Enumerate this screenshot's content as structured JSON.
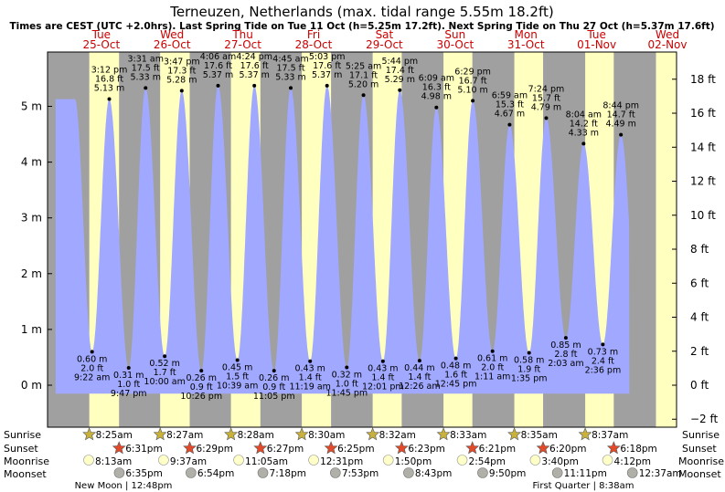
{
  "title": "Terneuzen, Netherlands (max. tidal range 5.55m 18.2ft)",
  "subtitle": "Times are CEST (UTC +2.0hrs). Last Spring Tide on Tue 11 Oct (h=5.25m 17.2ft). Next Spring Tide on Thu 27 Oct (h=5.37m 17.6ft)",
  "days": [
    {
      "dow": "Tue",
      "date": "25-Oct"
    },
    {
      "dow": "Wed",
      "date": "26-Oct"
    },
    {
      "dow": "Thu",
      "date": "27-Oct"
    },
    {
      "dow": "Fri",
      "date": "28-Oct"
    },
    {
      "dow": "Sat",
      "date": "29-Oct"
    },
    {
      "dow": "Sun",
      "date": "30-Oct"
    },
    {
      "dow": "Mon",
      "date": "31-Oct"
    },
    {
      "dow": "Tue",
      "date": "01-Nov"
    },
    {
      "dow": "Wed",
      "date": "02-Nov"
    }
  ],
  "row_labels": {
    "sunrise": "Sunrise",
    "sunset": "Sunset",
    "moonrise": "Moonrise",
    "moonset": "Moonset"
  },
  "sun": [
    {
      "rise": "8:25am",
      "set": "6:31pm"
    },
    {
      "rise": "8:27am",
      "set": "6:29pm"
    },
    {
      "rise": "8:28am",
      "set": "6:27pm"
    },
    {
      "rise": "8:30am",
      "set": "6:25pm"
    },
    {
      "rise": "8:32am",
      "set": "6:23pm"
    },
    {
      "rise": "8:33am",
      "set": "6:21pm"
    },
    {
      "rise": "8:35am",
      "set": "6:20pm"
    },
    {
      "rise": "8:37am",
      "set": "6:18pm"
    }
  ],
  "moon": [
    {
      "rise": "8:13am",
      "set": "6:35pm"
    },
    {
      "rise": "9:37am",
      "set": "6:54pm"
    },
    {
      "rise": "11:05am",
      "set": "7:18pm"
    },
    {
      "rise": "12:31pm",
      "set": "7:53pm"
    },
    {
      "rise": "1:50pm",
      "set": "8:43pm"
    },
    {
      "rise": "2:54pm",
      "set": "9:50pm"
    },
    {
      "rise": "3:40pm",
      "set": "11:11pm"
    },
    {
      "rise": "4:12pm",
      "set": "12:37am"
    }
  ],
  "moon_phases": [
    {
      "label": "New Moon",
      "time": "12:48pm"
    },
    {
      "label": "First Quarter",
      "time": "8:38am"
    }
  ],
  "colors": {
    "day": "#ffffc0",
    "night": "#a0a0a0",
    "water": "#a0a8ff",
    "sun_star": "#c8b23c",
    "sunset_star": "#e24a2a",
    "moon_light": "#ffffc8",
    "moon_dark": "#b0b0a8"
  },
  "chart_data": {
    "type": "area",
    "title": "Terneuzen, Netherlands (max. tidal range 5.55m 18.2ft)",
    "y_left": {
      "unit": "m",
      "ticks": [
        0,
        1,
        2,
        3,
        4,
        5
      ],
      "tick_labels": [
        "0 m",
        "1 m",
        "2 m",
        "3 m",
        "4 m",
        "5 m"
      ],
      "range": [
        -0.65,
        5.9
      ]
    },
    "y_right": {
      "unit": "ft",
      "ticks": [
        -2,
        0,
        2,
        4,
        6,
        8,
        10,
        12,
        14,
        16,
        18
      ],
      "tick_labels": [
        "−2 ft",
        "0 ft",
        "2 ft",
        "4 ft",
        "6 ft",
        "8 ft",
        "10 ft",
        "12 ft",
        "14 ft",
        "16 ft",
        "18 ft"
      ]
    },
    "x_range": [
      "2022-10-25 00:00",
      "2022-11-02 00:00"
    ],
    "tides": [
      {
        "t": "2022-10-25 09:22",
        "type": "low",
        "m": 0.6,
        "ft": 2.0,
        "time": "9:22 am"
      },
      {
        "t": "2022-10-25 15:12",
        "type": "high",
        "m": 5.13,
        "ft": 16.8,
        "time": "3:12 pm"
      },
      {
        "t": "2022-10-25 21:47",
        "type": "low",
        "m": 0.31,
        "ft": 1.0,
        "time": "9:47 pm"
      },
      {
        "t": "2022-10-26 03:31",
        "type": "high",
        "m": 5.33,
        "ft": 17.5,
        "time": "3:31 am"
      },
      {
        "t": "2022-10-26 10:00",
        "type": "low",
        "m": 0.52,
        "ft": 1.7,
        "time": "10:00 am"
      },
      {
        "t": "2022-10-26 15:47",
        "type": "high",
        "m": 5.28,
        "ft": 17.3,
        "time": "3:47 pm"
      },
      {
        "t": "2022-10-26 22:26",
        "type": "low",
        "m": 0.26,
        "ft": 0.9,
        "time": "10:26 pm"
      },
      {
        "t": "2022-10-27 04:06",
        "type": "high",
        "m": 5.37,
        "ft": 17.6,
        "time": "4:06 am"
      },
      {
        "t": "2022-10-27 10:39",
        "type": "low",
        "m": 0.45,
        "ft": 1.5,
        "time": "10:39 am"
      },
      {
        "t": "2022-10-27 16:24",
        "type": "high",
        "m": 5.37,
        "ft": 17.6,
        "time": "4:24 pm"
      },
      {
        "t": "2022-10-27 23:05",
        "type": "low",
        "m": 0.26,
        "ft": 0.9,
        "time": "11:05 pm"
      },
      {
        "t": "2022-10-28 04:45",
        "type": "high",
        "m": 5.33,
        "ft": 17.5,
        "time": "4:45 am"
      },
      {
        "t": "2022-10-28 11:19",
        "type": "low",
        "m": 0.43,
        "ft": 1.4,
        "time": "11:19 am"
      },
      {
        "t": "2022-10-28 17:03",
        "type": "high",
        "m": 5.37,
        "ft": 17.6,
        "time": "5:03 pm"
      },
      {
        "t": "2022-10-28 23:45",
        "type": "low",
        "m": 0.32,
        "ft": 1.0,
        "time": "11:45 pm"
      },
      {
        "t": "2022-10-29 05:25",
        "type": "high",
        "m": 5.2,
        "ft": 17.1,
        "time": "5:25 am"
      },
      {
        "t": "2022-10-29 12:01",
        "type": "low",
        "m": 0.43,
        "ft": 1.4,
        "time": "12:01 pm"
      },
      {
        "t": "2022-10-29 17:44",
        "type": "high",
        "m": 5.29,
        "ft": 17.4,
        "time": "5:44 pm"
      },
      {
        "t": "2022-10-30 00:26",
        "type": "low",
        "m": 0.44,
        "ft": 1.4,
        "time": "12:26 am"
      },
      {
        "t": "2022-10-30 06:09",
        "type": "high",
        "m": 4.98,
        "ft": 16.3,
        "time": "6:09 am"
      },
      {
        "t": "2022-10-30 12:45",
        "type": "low",
        "m": 0.48,
        "ft": 1.6,
        "time": "12:45 pm"
      },
      {
        "t": "2022-10-30 18:29",
        "type": "high",
        "m": 5.1,
        "ft": 16.7,
        "time": "6:29 pm"
      },
      {
        "t": "2022-10-31 01:11",
        "type": "low",
        "m": 0.61,
        "ft": 2.0,
        "time": "1:11 am"
      },
      {
        "t": "2022-10-31 06:59",
        "type": "high",
        "m": 4.67,
        "ft": 15.3,
        "time": "6:59 am"
      },
      {
        "t": "2022-10-31 13:35",
        "type": "low",
        "m": 0.58,
        "ft": 1.9,
        "time": "1:35 pm"
      },
      {
        "t": "2022-10-31 19:24",
        "type": "high",
        "m": 4.79,
        "ft": 15.7,
        "time": "7:24 pm"
      },
      {
        "t": "2022-11-01 02:03",
        "type": "low",
        "m": 0.85,
        "ft": 2.8,
        "time": "2:03 am"
      },
      {
        "t": "2022-11-01 08:04",
        "type": "high",
        "m": 4.33,
        "ft": 14.2,
        "time": "8:04 am"
      },
      {
        "t": "2022-11-01 14:36",
        "type": "low",
        "m": 0.73,
        "ft": 2.4,
        "time": "2:36 pm"
      },
      {
        "t": "2022-11-01 20:44",
        "type": "high",
        "m": 4.49,
        "ft": 14.7,
        "time": "8:44 pm"
      }
    ]
  }
}
